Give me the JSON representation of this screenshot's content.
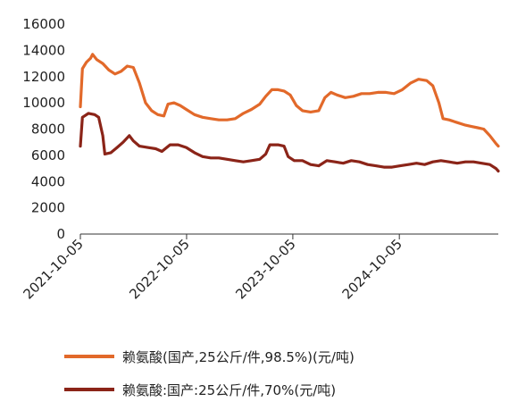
{
  "chart_data": {
    "type": "line",
    "title": "",
    "xlabel": "",
    "ylabel": "",
    "ylim": [
      0,
      16000
    ],
    "yticks": [
      0,
      2000,
      4000,
      6000,
      8000,
      10000,
      12000,
      14000,
      16000
    ],
    "xlim": [
      "2021-10-05",
      "2025-09-10"
    ],
    "xticks": [
      "2021-10-05",
      "2022-10-05",
      "2023-10-05",
      "2024-10-05"
    ],
    "grid": false,
    "legend_position": "bottom",
    "series": [
      {
        "name": "赖氨酸(国产,25公斤/件,98.5%)(元/吨)",
        "color": "#E2692A",
        "points": [
          [
            "2021-10-05",
            9700
          ],
          [
            "2021-10-12",
            12600
          ],
          [
            "2021-10-26",
            13100
          ],
          [
            "2021-11-09",
            13400
          ],
          [
            "2021-11-16",
            13700
          ],
          [
            "2021-11-30",
            13300
          ],
          [
            "2021-12-21",
            13000
          ],
          [
            "2022-01-11",
            12500
          ],
          [
            "2022-02-01",
            12200
          ],
          [
            "2022-02-22",
            12400
          ],
          [
            "2022-03-15",
            12800
          ],
          [
            "2022-04-05",
            12700
          ],
          [
            "2022-04-26",
            11500
          ],
          [
            "2022-05-17",
            10000
          ],
          [
            "2022-06-07",
            9400
          ],
          [
            "2022-06-28",
            9100
          ],
          [
            "2022-07-19",
            9000
          ],
          [
            "2022-08-02",
            9900
          ],
          [
            "2022-08-23",
            10000
          ],
          [
            "2022-09-13",
            9800
          ],
          [
            "2022-10-04",
            9500
          ],
          [
            "2022-11-01",
            9100
          ],
          [
            "2022-11-29",
            8900
          ],
          [
            "2022-12-27",
            8800
          ],
          [
            "2023-01-24",
            8700
          ],
          [
            "2023-02-21",
            8700
          ],
          [
            "2023-03-21",
            8800
          ],
          [
            "2023-04-18",
            9200
          ],
          [
            "2023-05-16",
            9500
          ],
          [
            "2023-06-13",
            9900
          ],
          [
            "2023-07-04",
            10500
          ],
          [
            "2023-07-25",
            11000
          ],
          [
            "2023-08-15",
            11000
          ],
          [
            "2023-09-05",
            10900
          ],
          [
            "2023-09-26",
            10600
          ],
          [
            "2023-10-17",
            9800
          ],
          [
            "2023-11-07",
            9400
          ],
          [
            "2023-12-05",
            9300
          ],
          [
            "2024-01-02",
            9400
          ],
          [
            "2024-01-23",
            10400
          ],
          [
            "2024-02-13",
            10800
          ],
          [
            "2024-03-05",
            10600
          ],
          [
            "2024-04-02",
            10400
          ],
          [
            "2024-04-30",
            10500
          ],
          [
            "2024-05-28",
            10700
          ],
          [
            "2024-06-25",
            10700
          ],
          [
            "2024-07-23",
            10800
          ],
          [
            "2024-08-20",
            10800
          ],
          [
            "2024-09-17",
            10700
          ],
          [
            "2024-10-15",
            11000
          ],
          [
            "2024-11-12",
            11500
          ],
          [
            "2024-12-10",
            11800
          ],
          [
            "2025-01-07",
            11700
          ],
          [
            "2025-01-28",
            11300
          ],
          [
            "2025-02-18",
            10000
          ],
          [
            "2025-03-04",
            8800
          ],
          [
            "2025-03-25",
            8700
          ],
          [
            "2025-04-22",
            8500
          ],
          [
            "2025-05-20",
            8300
          ],
          [
            "2025-06-10",
            8200
          ],
          [
            "2025-07-01",
            8100
          ],
          [
            "2025-07-22",
            8000
          ],
          [
            "2025-08-12",
            7500
          ],
          [
            "2025-09-02",
            6900
          ],
          [
            "2025-09-10",
            6700
          ]
        ]
      },
      {
        "name": "赖氨酸:国产:25公斤/件,70%(元/吨)",
        "color": "#8B2418",
        "points": [
          [
            "2021-10-05",
            6700
          ],
          [
            "2021-10-12",
            8900
          ],
          [
            "2021-11-02",
            9200
          ],
          [
            "2021-11-23",
            9100
          ],
          [
            "2021-12-07",
            8900
          ],
          [
            "2021-12-21",
            7500
          ],
          [
            "2021-12-28",
            6100
          ],
          [
            "2022-01-18",
            6200
          ],
          [
            "2022-02-08",
            6600
          ],
          [
            "2022-03-01",
            7000
          ],
          [
            "2022-03-22",
            7500
          ],
          [
            "2022-04-05",
            7100
          ],
          [
            "2022-04-26",
            6700
          ],
          [
            "2022-05-24",
            6600
          ],
          [
            "2022-06-21",
            6500
          ],
          [
            "2022-07-12",
            6300
          ],
          [
            "2022-08-09",
            6800
          ],
          [
            "2022-09-06",
            6800
          ],
          [
            "2022-10-04",
            6600
          ],
          [
            "2022-11-01",
            6200
          ],
          [
            "2022-11-29",
            5900
          ],
          [
            "2022-12-27",
            5800
          ],
          [
            "2023-01-24",
            5800
          ],
          [
            "2023-02-21",
            5700
          ],
          [
            "2023-03-21",
            5600
          ],
          [
            "2023-04-18",
            5500
          ],
          [
            "2023-05-16",
            5600
          ],
          [
            "2023-06-13",
            5700
          ],
          [
            "2023-07-04",
            6100
          ],
          [
            "2023-07-18",
            6800
          ],
          [
            "2023-08-15",
            6800
          ],
          [
            "2023-09-05",
            6700
          ],
          [
            "2023-09-19",
            5900
          ],
          [
            "2023-10-10",
            5600
          ],
          [
            "2023-11-07",
            5600
          ],
          [
            "2023-12-05",
            5300
          ],
          [
            "2024-01-02",
            5200
          ],
          [
            "2024-01-30",
            5600
          ],
          [
            "2024-02-27",
            5500
          ],
          [
            "2024-03-26",
            5400
          ],
          [
            "2024-04-23",
            5600
          ],
          [
            "2024-05-21",
            5500
          ],
          [
            "2024-06-18",
            5300
          ],
          [
            "2024-07-16",
            5200
          ],
          [
            "2024-08-13",
            5100
          ],
          [
            "2024-09-10",
            5100
          ],
          [
            "2024-10-08",
            5200
          ],
          [
            "2024-11-05",
            5300
          ],
          [
            "2024-12-03",
            5400
          ],
          [
            "2024-12-31",
            5300
          ],
          [
            "2025-01-28",
            5500
          ],
          [
            "2025-02-25",
            5600
          ],
          [
            "2025-03-25",
            5500
          ],
          [
            "2025-04-22",
            5400
          ],
          [
            "2025-05-20",
            5500
          ],
          [
            "2025-06-17",
            5500
          ],
          [
            "2025-07-15",
            5400
          ],
          [
            "2025-08-12",
            5300
          ],
          [
            "2025-09-02",
            5000
          ],
          [
            "2025-09-10",
            4800
          ]
        ]
      }
    ]
  }
}
